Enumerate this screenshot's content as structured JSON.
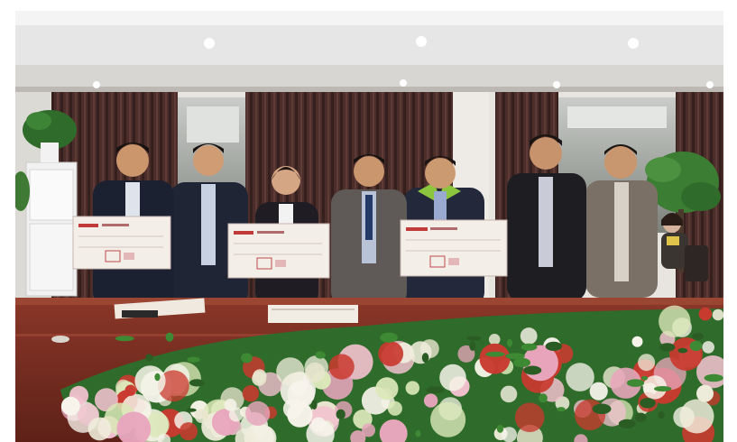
{
  "photo": {
    "subject": "group-photo",
    "colors": {
      "ceiling": "#e9e9ea",
      "curtain": "#4e2f2c",
      "wall": "#eceae6",
      "table": "#7a2e22",
      "suit_dark": "#1f2230",
      "suit_grey": "#6d6660",
      "flowers_white": "#f3f1e6",
      "flowers_pink": "#e6a2b8",
      "flowers_red": "#c9302b",
      "leaves": "#2f6b2a"
    }
  },
  "cheques": [
    {
      "logo_text": "",
      "amount_text": ""
    },
    {
      "logo_text": "",
      "amount_text": ""
    },
    {
      "logo_text": "",
      "amount_text": ""
    }
  ]
}
